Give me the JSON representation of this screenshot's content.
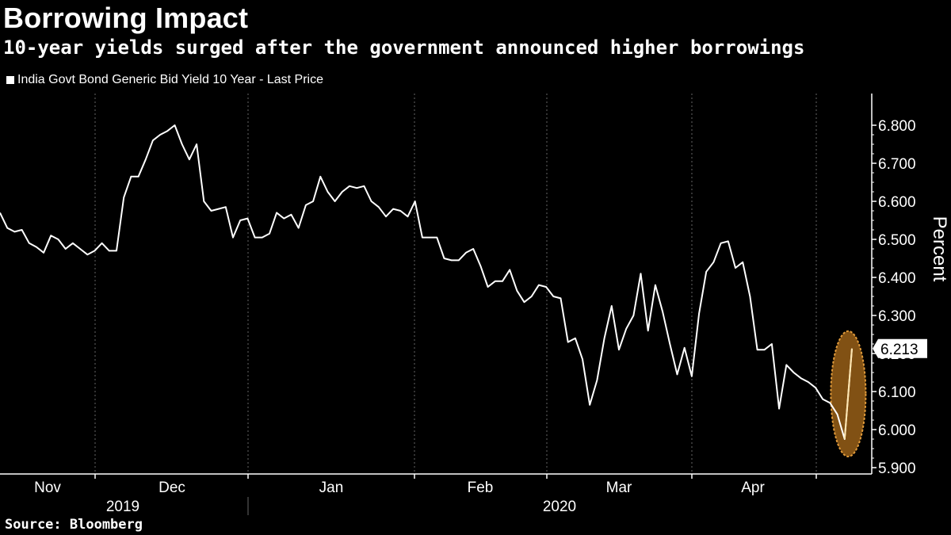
{
  "title": "Borrowing Impact",
  "subtitle": "10-year yields surged after the government announced higher borrowings",
  "source": "Source: Bloomberg",
  "colors": {
    "background": "#000000",
    "line": "#ffffff",
    "highlight": "#b8731c",
    "grid": "#666666"
  },
  "chart_data": {
    "type": "line",
    "ylabel": "Percent",
    "ylim": [
      5.9,
      6.8
    ],
    "yticks": [
      "6.800",
      "6.700",
      "6.600",
      "6.500",
      "6.400",
      "6.300",
      "6.200",
      "6.100",
      "6.000",
      "5.900"
    ],
    "month_labels": [
      "Nov",
      "Dec",
      "Jan",
      "Feb",
      "Mar",
      "Apr"
    ],
    "year_labels": [
      "2019",
      "2020"
    ],
    "last_value_label": "6.213",
    "grid": true,
    "highlight": "last move circled",
    "series": [
      {
        "name": "India Govt Bond Generic Bid Yield 10 Year - Last Price",
        "values": [
          6.57,
          6.53,
          6.52,
          6.525,
          6.49,
          6.48,
          6.465,
          6.51,
          6.5,
          6.475,
          6.49,
          6.475,
          6.46,
          6.47,
          6.49,
          6.47,
          6.47,
          6.61,
          6.665,
          6.665,
          6.71,
          6.76,
          6.775,
          6.785,
          6.8,
          6.75,
          6.71,
          6.75,
          6.6,
          6.575,
          6.58,
          6.585,
          6.505,
          6.55,
          6.555,
          6.505,
          6.505,
          6.515,
          6.57,
          6.555,
          6.565,
          6.53,
          6.59,
          6.6,
          6.665,
          6.625,
          6.6,
          6.625,
          6.64,
          6.635,
          6.64,
          6.6,
          6.585,
          6.56,
          6.58,
          6.575,
          6.56,
          6.6,
          6.505,
          6.505,
          6.505,
          6.45,
          6.445,
          6.445,
          6.465,
          6.475,
          6.43,
          6.375,
          6.39,
          6.39,
          6.42,
          6.365,
          6.335,
          6.35,
          6.38,
          6.375,
          6.35,
          6.345,
          6.23,
          6.24,
          6.185,
          6.065,
          6.13,
          6.24,
          6.325,
          6.21,
          6.265,
          6.3,
          6.41,
          6.26,
          6.38,
          6.31,
          6.225,
          6.145,
          6.215,
          6.14,
          6.305,
          6.415,
          6.44,
          6.49,
          6.495,
          6.425,
          6.44,
          6.35,
          6.21,
          6.21,
          6.225,
          6.055,
          6.17,
          6.15,
          6.135,
          6.125,
          6.11,
          6.08,
          6.07,
          6.04,
          5.975,
          6.213
        ]
      }
    ]
  }
}
